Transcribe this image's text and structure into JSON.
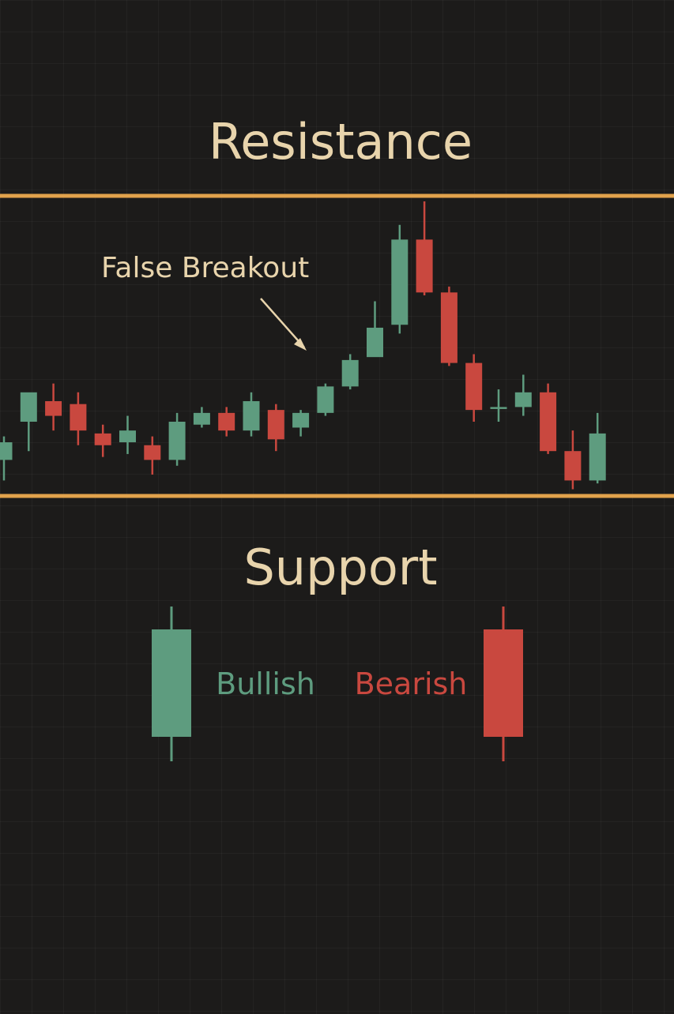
{
  "colors": {
    "background": "#1c1b1a",
    "level_line": "#e1a24c",
    "label_text": "#e8d4ac",
    "bullish": "#5e9c7f",
    "bearish": "#c9483f"
  },
  "chart_data": {
    "type": "candlestick",
    "title": "",
    "levels": [
      {
        "name": "Resistance",
        "value": 100
      },
      {
        "name": "Support",
        "value": 0
      }
    ],
    "annotation": {
      "text": "False Breakout",
      "target_candle": 13
    },
    "ylim": [
      -2,
      100
    ],
    "candles": [
      {
        "o": 12,
        "h": 20,
        "l": 5,
        "c": 18
      },
      {
        "o": 25,
        "h": 34,
        "l": 15,
        "c": 35
      },
      {
        "o": 32,
        "h": 38,
        "l": 22,
        "c": 27
      },
      {
        "o": 31,
        "h": 35,
        "l": 17,
        "c": 22
      },
      {
        "o": 21,
        "h": 24,
        "l": 13,
        "c": 17
      },
      {
        "o": 18,
        "h": 27,
        "l": 14,
        "c": 22
      },
      {
        "o": 17,
        "h": 20,
        "l": 7,
        "c": 12
      },
      {
        "o": 12,
        "h": 28,
        "l": 10,
        "c": 25
      },
      {
        "o": 24,
        "h": 30,
        "l": 23,
        "c": 28
      },
      {
        "o": 28,
        "h": 30,
        "l": 20,
        "c": 22
      },
      {
        "o": 22,
        "h": 35,
        "l": 20,
        "c": 32
      },
      {
        "o": 29,
        "h": 31,
        "l": 15,
        "c": 19
      },
      {
        "o": 23,
        "h": 29,
        "l": 20,
        "c": 28
      },
      {
        "o": 28,
        "h": 38,
        "l": 27,
        "c": 37
      },
      {
        "o": 37,
        "h": 48,
        "l": 36,
        "c": 46
      },
      {
        "o": 47,
        "h": 66,
        "l": 48,
        "c": 57
      },
      {
        "o": 58,
        "h": 92,
        "l": 55,
        "c": 87
      },
      {
        "o": 87,
        "h": 100,
        "l": 68,
        "c": 69
      },
      {
        "o": 69,
        "h": 71,
        "l": 44,
        "c": 45
      },
      {
        "o": 45,
        "h": 48,
        "l": 25,
        "c": 29
      },
      {
        "o": 30,
        "h": 36,
        "l": 25,
        "c": 30
      },
      {
        "o": 30,
        "h": 41,
        "l": 27,
        "c": 35
      },
      {
        "o": 35,
        "h": 38,
        "l": 14,
        "c": 15
      },
      {
        "o": 15,
        "h": 22,
        "l": 2,
        "c": 5
      },
      {
        "o": 5,
        "h": 28,
        "l": 4,
        "c": 21
      }
    ],
    "legend": [
      {
        "label": "Bullish",
        "kind": "bullish"
      },
      {
        "label": "Bearish",
        "kind": "bearish"
      }
    ]
  }
}
